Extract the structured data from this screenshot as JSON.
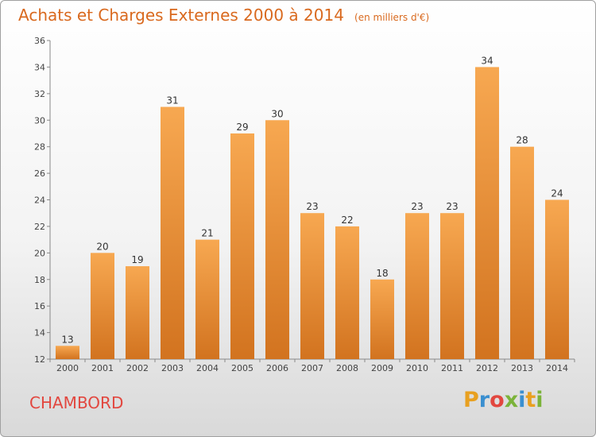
{
  "header": {
    "title": "Achats et Charges Externes 2000 à 2014",
    "subtitle": "(en milliers d'€)"
  },
  "footer": {
    "commune": "CHAMBORD",
    "logo": "Proxiti"
  },
  "colors": {
    "title": "#d9691e",
    "commune": "#e2473f",
    "bar_top": "#f7a851",
    "bar_bottom": "#d2731f",
    "logo_letters": [
      "#e8a020",
      "#3a8fd0",
      "#e2473f",
      "#7bb33a",
      "#3a8fd0",
      "#e8a020",
      "#7bb33a"
    ]
  },
  "chart_data": {
    "type": "bar",
    "title": "Achats et Charges Externes 2000 à 2014",
    "subtitle": "(en milliers d'€)",
    "xlabel": "",
    "ylabel": "",
    "categories": [
      "2000",
      "2001",
      "2002",
      "2003",
      "2004",
      "2005",
      "2006",
      "2007",
      "2008",
      "2009",
      "2010",
      "2011",
      "2012",
      "2013",
      "2014"
    ],
    "values": [
      13,
      20,
      19,
      31,
      21,
      29,
      30,
      23,
      22,
      18,
      23,
      23,
      34,
      28,
      24
    ],
    "ylim": [
      12,
      36
    ],
    "yticks": [
      12,
      14,
      16,
      18,
      20,
      22,
      24,
      26,
      28,
      30,
      32,
      34,
      36
    ],
    "grid": false,
    "legend": "none"
  }
}
